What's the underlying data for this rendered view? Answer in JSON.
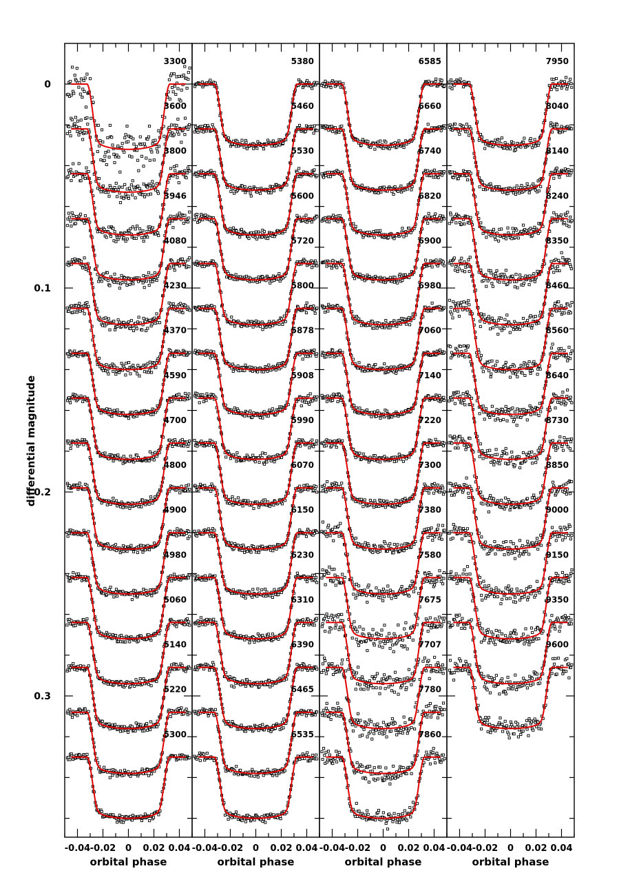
{
  "chart_data": {
    "type": "scatter",
    "title": "",
    "ylabel": "differential magnitude",
    "ylim_inverted": [
      -0.018,
      0.37
    ],
    "yticks": [
      0,
      0.1,
      0.2,
      0.3
    ],
    "yticks_labels": [
      "0",
      "0.1",
      "0.2",
      "0.3"
    ],
    "curve_color": "#e00000",
    "point_style": "open-square",
    "panels": [
      {
        "xlabel": "orbital phase",
        "xlim": [
          -0.05,
          0.05
        ],
        "xticks_labels": [
          "-0.04",
          "-0.02",
          "0",
          "0.02",
          "0.04"
        ],
        "series": [
          {
            "label": "3300",
            "offset": 0.0,
            "depth": 0.032,
            "noise": 0.01
          },
          {
            "label": "3600",
            "offset": 0.022,
            "depth": 0.031,
            "noise": 0.005
          },
          {
            "label": "3800",
            "offset": 0.044,
            "depth": 0.03,
            "noise": 0.004
          },
          {
            "label": "3946",
            "offset": 0.066,
            "depth": 0.03,
            "noise": 0.0035
          },
          {
            "label": "4080",
            "offset": 0.088,
            "depth": 0.03,
            "noise": 0.003
          },
          {
            "label": "4230",
            "offset": 0.11,
            "depth": 0.03,
            "noise": 0.003
          },
          {
            "label": "4370",
            "offset": 0.132,
            "depth": 0.03,
            "noise": 0.002
          },
          {
            "label": "4590",
            "offset": 0.154,
            "depth": 0.03,
            "noise": 0.002
          },
          {
            "label": "4700",
            "offset": 0.176,
            "depth": 0.03,
            "noise": 0.002
          },
          {
            "label": "4800",
            "offset": 0.198,
            "depth": 0.03,
            "noise": 0.002
          },
          {
            "label": "4900",
            "offset": 0.22,
            "depth": 0.03,
            "noise": 0.002
          },
          {
            "label": "4980",
            "offset": 0.242,
            "depth": 0.03,
            "noise": 0.002
          },
          {
            "label": "5060",
            "offset": 0.264,
            "depth": 0.03,
            "noise": 0.002
          },
          {
            "label": "5140",
            "offset": 0.286,
            "depth": 0.03,
            "noise": 0.002
          },
          {
            "label": "5220",
            "offset": 0.308,
            "depth": 0.03,
            "noise": 0.002
          },
          {
            "label": "5300",
            "offset": 0.33,
            "depth": 0.03,
            "noise": 0.002
          }
        ]
      },
      {
        "xlabel": "orbital phase",
        "xlim": [
          -0.05,
          0.05
        ],
        "xticks_labels": [
          "-0.04",
          "-0.02",
          "0",
          "0.02",
          "0.04"
        ],
        "series": [
          {
            "label": "5380",
            "offset": 0.0,
            "depth": 0.03,
            "noise": 0.002
          },
          {
            "label": "5460",
            "offset": 0.022,
            "depth": 0.03,
            "noise": 0.002
          },
          {
            "label": "5530",
            "offset": 0.044,
            "depth": 0.03,
            "noise": 0.002
          },
          {
            "label": "5600",
            "offset": 0.066,
            "depth": 0.03,
            "noise": 0.002
          },
          {
            "label": "5720",
            "offset": 0.088,
            "depth": 0.03,
            "noise": 0.002
          },
          {
            "label": "5800",
            "offset": 0.11,
            "depth": 0.03,
            "noise": 0.002
          },
          {
            "label": "5878",
            "offset": 0.132,
            "depth": 0.03,
            "noise": 0.002
          },
          {
            "label": "5908",
            "offset": 0.154,
            "depth": 0.03,
            "noise": 0.0025
          },
          {
            "label": "5990",
            "offset": 0.176,
            "depth": 0.03,
            "noise": 0.002
          },
          {
            "label": "6070",
            "offset": 0.198,
            "depth": 0.03,
            "noise": 0.002
          },
          {
            "label": "6150",
            "offset": 0.22,
            "depth": 0.03,
            "noise": 0.002
          },
          {
            "label": "6230",
            "offset": 0.242,
            "depth": 0.03,
            "noise": 0.002
          },
          {
            "label": "6310",
            "offset": 0.264,
            "depth": 0.03,
            "noise": 0.002
          },
          {
            "label": "6390",
            "offset": 0.286,
            "depth": 0.03,
            "noise": 0.002
          },
          {
            "label": "6465",
            "offset": 0.308,
            "depth": 0.03,
            "noise": 0.002
          },
          {
            "label": "6535",
            "offset": 0.33,
            "depth": 0.03,
            "noise": 0.002
          }
        ]
      },
      {
        "xlabel": "orbital phase",
        "xlim": [
          -0.05,
          0.05
        ],
        "xticks_labels": [
          "-0.04",
          "-0.02",
          "0",
          "0.02",
          "0.04"
        ],
        "series": [
          {
            "label": "6585",
            "offset": 0.0,
            "depth": 0.03,
            "noise": 0.002
          },
          {
            "label": "6660",
            "offset": 0.022,
            "depth": 0.03,
            "noise": 0.002
          },
          {
            "label": "6740",
            "offset": 0.044,
            "depth": 0.03,
            "noise": 0.002
          },
          {
            "label": "6820",
            "offset": 0.066,
            "depth": 0.03,
            "noise": 0.002
          },
          {
            "label": "6900",
            "offset": 0.088,
            "depth": 0.03,
            "noise": 0.002
          },
          {
            "label": "6980",
            "offset": 0.11,
            "depth": 0.03,
            "noise": 0.002
          },
          {
            "label": "7060",
            "offset": 0.132,
            "depth": 0.03,
            "noise": 0.002
          },
          {
            "label": "7140",
            "offset": 0.154,
            "depth": 0.03,
            "noise": 0.002
          },
          {
            "label": "7220",
            "offset": 0.176,
            "depth": 0.03,
            "noise": 0.002
          },
          {
            "label": "7300",
            "offset": 0.198,
            "depth": 0.03,
            "noise": 0.003
          },
          {
            "label": "7380",
            "offset": 0.22,
            "depth": 0.03,
            "noise": 0.004
          },
          {
            "label": "7580",
            "offset": 0.242,
            "depth": 0.03,
            "noise": 0.006
          },
          {
            "label": "7675",
            "offset": 0.264,
            "depth": 0.03,
            "noise": 0.005
          },
          {
            "label": "7707",
            "offset": 0.286,
            "depth": 0.03,
            "noise": 0.005
          },
          {
            "label": "7780",
            "offset": 0.308,
            "depth": 0.03,
            "noise": 0.004
          },
          {
            "label": "7860",
            "offset": 0.33,
            "depth": 0.03,
            "noise": 0.004
          }
        ]
      },
      {
        "xlabel": "orbital phase",
        "xlim": [
          -0.05,
          0.05
        ],
        "xticks_labels": [
          "-0.04",
          "-0.02",
          "0",
          "0.02",
          "0.04"
        ],
        "series": [
          {
            "label": "7950",
            "offset": 0.0,
            "depth": 0.03,
            "noise": 0.003
          },
          {
            "label": "8040",
            "offset": 0.022,
            "depth": 0.03,
            "noise": 0.003
          },
          {
            "label": "8140",
            "offset": 0.044,
            "depth": 0.03,
            "noise": 0.003
          },
          {
            "label": "8240",
            "offset": 0.066,
            "depth": 0.03,
            "noise": 0.004
          },
          {
            "label": "8350",
            "offset": 0.088,
            "depth": 0.03,
            "noise": 0.004
          },
          {
            "label": "8460",
            "offset": 0.11,
            "depth": 0.03,
            "noise": 0.004
          },
          {
            "label": "8560",
            "offset": 0.132,
            "depth": 0.03,
            "noise": 0.004
          },
          {
            "label": "8640",
            "offset": 0.154,
            "depth": 0.03,
            "noise": 0.004
          },
          {
            "label": "8730",
            "offset": 0.176,
            "depth": 0.03,
            "noise": 0.004
          },
          {
            "label": "8850",
            "offset": 0.198,
            "depth": 0.03,
            "noise": 0.004
          },
          {
            "label": "9000",
            "offset": 0.22,
            "depth": 0.03,
            "noise": 0.004
          },
          {
            "label": "9150",
            "offset": 0.242,
            "depth": 0.03,
            "noise": 0.004
          },
          {
            "label": "9350",
            "offset": 0.264,
            "depth": 0.03,
            "noise": 0.004
          },
          {
            "label": "9600",
            "offset": 0.286,
            "depth": 0.03,
            "noise": 0.005
          }
        ]
      }
    ]
  }
}
